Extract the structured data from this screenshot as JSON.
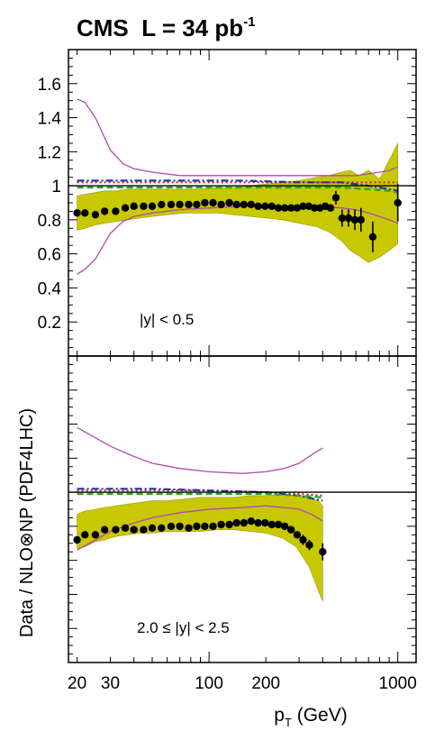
{
  "chart_data": [
    {
      "type": "scatter",
      "title": "CMS  L = 34 pb",
      "title_superscript": "-1",
      "annotation": "|y| < 0.5",
      "xlabel": "",
      "ylabel": "",
      "xscale": "log",
      "xlim": [
        18,
        1250
      ],
      "ylim": [
        0,
        1.8
      ],
      "yticks": [
        0.2,
        0.4,
        0.6,
        0.8,
        1,
        1.2,
        1.4,
        1.6
      ],
      "ytick_labels": [
        "0.2",
        "0.4",
        "0.6",
        "0.8",
        "1",
        "1.2",
        "1.4",
        "1.6"
      ],
      "reference_line": 1,
      "colors": {
        "band": "#c8c800",
        "bandEdge": "#9a9a00",
        "magenta": "#b04ab0",
        "red": "#cc2222",
        "blue": "#2233aa",
        "green": "#22aa22"
      },
      "band": {
        "x": [
          20,
          22,
          25,
          28,
          32,
          37,
          43,
          50,
          60,
          74,
          90,
          110,
          135,
          165,
          200,
          245,
          300,
          370,
          430,
          500,
          560,
          620,
          700,
          800,
          900,
          1000
        ],
        "upper": [
          0.94,
          0.95,
          0.96,
          0.97,
          0.97,
          0.98,
          0.98,
          0.98,
          0.98,
          0.98,
          0.98,
          0.99,
          0.99,
          1.0,
          1.01,
          1.02,
          1.03,
          1.05,
          1.06,
          1.08,
          1.09,
          1.06,
          1.09,
          1.04,
          1.15,
          1.25
        ],
        "lower": [
          0.74,
          0.75,
          0.77,
          0.78,
          0.79,
          0.8,
          0.81,
          0.82,
          0.83,
          0.84,
          0.84,
          0.84,
          0.83,
          0.82,
          0.81,
          0.8,
          0.78,
          0.76,
          0.73,
          0.68,
          0.62,
          0.59,
          0.55,
          0.58,
          0.62,
          0.66
        ]
      },
      "curves": [
        {
          "style": "solid",
          "color": "#b04ab0",
          "x": [
            20,
            22,
            25,
            30,
            35,
            40,
            50,
            70,
            100,
            150,
            200,
            300,
            400,
            500,
            600,
            700,
            800,
            900,
            1000
          ],
          "y": [
            1.51,
            1.49,
            1.4,
            1.21,
            1.13,
            1.1,
            1.08,
            1.06,
            1.06,
            1.06,
            1.06,
            1.06,
            1.06,
            1.06,
            1.06,
            1.07,
            1.08,
            1.09,
            1.11
          ]
        },
        {
          "style": "solid",
          "color": "#b04ab0",
          "x": [
            20,
            22,
            25,
            30,
            35,
            40,
            50,
            70,
            100,
            150,
            200,
            300,
            400,
            500,
            600,
            700,
            800,
            900,
            1000
          ],
          "y": [
            0.48,
            0.51,
            0.57,
            0.72,
            0.79,
            0.82,
            0.84,
            0.86,
            0.87,
            0.88,
            0.88,
            0.88,
            0.88,
            0.87,
            0.86,
            0.84,
            0.82,
            0.8,
            0.78
          ]
        },
        {
          "style": "dotted",
          "color": "#cc2222",
          "x": [
            20,
            40,
            80,
            150,
            300,
            500,
            700,
            900,
            1000
          ],
          "y": [
            1.02,
            1.02,
            1.02,
            1.02,
            1.02,
            1.02,
            1.02,
            1.02,
            1.02
          ]
        },
        {
          "style": "dashdot",
          "color": "#2233aa",
          "x": [
            20,
            40,
            80,
            150,
            300,
            500,
            700,
            900,
            1000
          ],
          "y": [
            1.03,
            1.03,
            1.03,
            1.03,
            1.02,
            1.02,
            1.0,
            0.98,
            0.97
          ]
        },
        {
          "style": "dashed",
          "color": "#22aa22",
          "x": [
            20,
            40,
            80,
            150,
            300,
            500,
            700,
            900,
            1000
          ],
          "y": [
            0.99,
            0.99,
            0.99,
            0.99,
            0.99,
            0.99,
            0.98,
            0.97,
            0.96
          ]
        }
      ],
      "points": {
        "x": [
          20,
          22,
          25,
          28,
          32,
          36,
          40,
          45,
          50,
          56,
          63,
          70,
          78,
          86,
          95,
          105,
          116,
          128,
          140,
          153,
          167,
          182,
          198,
          215,
          233,
          252,
          272,
          293,
          315,
          338,
          362,
          387,
          413,
          440,
          470,
          507,
          548,
          592,
          638,
          737,
          1000
        ],
        "y": [
          0.84,
          0.84,
          0.83,
          0.85,
          0.85,
          0.87,
          0.88,
          0.88,
          0.88,
          0.89,
          0.89,
          0.89,
          0.89,
          0.89,
          0.9,
          0.9,
          0.89,
          0.9,
          0.89,
          0.89,
          0.89,
          0.88,
          0.88,
          0.88,
          0.87,
          0.87,
          0.87,
          0.87,
          0.88,
          0.88,
          0.87,
          0.87,
          0.88,
          0.87,
          0.93,
          0.81,
          0.81,
          0.8,
          0.8,
          0.7,
          0.9
        ],
        "err": [
          0.01,
          0.01,
          0.01,
          0.01,
          0.01,
          0.01,
          0.01,
          0.01,
          0.01,
          0.01,
          0.01,
          0.01,
          0.01,
          0.01,
          0.01,
          0.01,
          0.01,
          0.01,
          0.01,
          0.01,
          0.01,
          0.01,
          0.01,
          0.01,
          0.01,
          0.01,
          0.01,
          0.01,
          0.01,
          0.01,
          0.01,
          0.01,
          0.01,
          0.02,
          0.04,
          0.05,
          0.05,
          0.06,
          0.07,
          0.09,
          0.11
        ]
      }
    },
    {
      "type": "scatter",
      "annotation": "2.0 ≤ |y| < 2.5",
      "xlabel": "p",
      "xlabel_subscript": "T",
      "xlabel_suffix": " (GeV)",
      "ylabel": "Data / NLO⊗NP (PDF4LHC)",
      "xscale": "log",
      "xlim": [
        18,
        1250
      ],
      "ylim": [
        0,
        1.8
      ],
      "xticks": [
        20,
        30,
        100,
        200,
        1000
      ],
      "xtick_labels": [
        "20",
        "30",
        "100",
        "200",
        "1000"
      ],
      "ytick_labels": [],
      "reference_line": 1,
      "band": {
        "x": [
          20,
          22,
          25,
          28,
          32,
          37,
          43,
          50,
          60,
          74,
          90,
          110,
          135,
          165,
          200,
          245,
          290,
          340,
          380,
          400
        ],
        "upper": [
          0.87,
          0.89,
          0.9,
          0.91,
          0.92,
          0.93,
          0.94,
          0.95,
          0.95,
          0.96,
          0.97,
          0.97,
          0.97,
          0.98,
          0.98,
          0.99,
          0.98,
          0.97,
          0.95,
          0.92
        ],
        "lower": [
          0.67,
          0.68,
          0.71,
          0.72,
          0.74,
          0.75,
          0.76,
          0.76,
          0.77,
          0.77,
          0.77,
          0.78,
          0.78,
          0.77,
          0.76,
          0.73,
          0.68,
          0.56,
          0.42,
          0.36
        ]
      },
      "curves": [
        {
          "style": "solid",
          "color": "#b04ab0",
          "x": [
            20,
            25,
            30,
            40,
            50,
            70,
            100,
            150,
            200,
            250,
            300,
            350,
            400
          ],
          "y": [
            1.38,
            1.32,
            1.27,
            1.21,
            1.17,
            1.14,
            1.12,
            1.11,
            1.12,
            1.14,
            1.17,
            1.22,
            1.26
          ]
        },
        {
          "style": "solid",
          "color": "#b04ab0",
          "x": [
            20,
            25,
            30,
            40,
            50,
            70,
            100,
            150,
            200,
            250,
            300,
            350,
            400
          ],
          "y": [
            0.66,
            0.72,
            0.77,
            0.82,
            0.85,
            0.88,
            0.9,
            0.91,
            0.92,
            0.91,
            0.9,
            0.87,
            0.83
          ]
        },
        {
          "style": "dotted",
          "color": "#cc2222",
          "x": [
            20,
            50,
            100,
            200,
            300,
            400
          ],
          "y": [
            1.01,
            1.01,
            1.01,
            1.0,
            0.99,
            0.98
          ]
        },
        {
          "style": "dashdot",
          "color": "#2233aa",
          "x": [
            20,
            50,
            100,
            200,
            300,
            400
          ],
          "y": [
            1.02,
            1.02,
            1.01,
            1.0,
            0.98,
            0.95
          ]
        },
        {
          "style": "dashed",
          "color": "#22aa22",
          "x": [
            20,
            50,
            100,
            200,
            300,
            400
          ],
          "y": [
            0.99,
            0.99,
            0.99,
            0.99,
            0.98,
            0.97
          ]
        }
      ],
      "points": {
        "x": [
          20,
          22,
          25,
          28,
          32,
          36,
          40,
          45,
          50,
          56,
          63,
          70,
          78,
          86,
          95,
          105,
          116,
          128,
          140,
          153,
          167,
          182,
          198,
          215,
          233,
          252,
          272,
          293,
          315,
          340,
          400
        ],
        "y": [
          0.72,
          0.75,
          0.75,
          0.78,
          0.78,
          0.79,
          0.78,
          0.78,
          0.79,
          0.79,
          0.8,
          0.8,
          0.79,
          0.8,
          0.8,
          0.8,
          0.81,
          0.81,
          0.82,
          0.82,
          0.83,
          0.82,
          0.82,
          0.81,
          0.81,
          0.8,
          0.78,
          0.75,
          0.72,
          0.69,
          0.65
        ],
        "err": [
          0.01,
          0.01,
          0.01,
          0.01,
          0.01,
          0.01,
          0.01,
          0.01,
          0.01,
          0.01,
          0.01,
          0.01,
          0.01,
          0.01,
          0.01,
          0.01,
          0.01,
          0.01,
          0.01,
          0.01,
          0.01,
          0.01,
          0.01,
          0.01,
          0.01,
          0.02,
          0.02,
          0.02,
          0.03,
          0.03,
          0.05
        ]
      }
    }
  ]
}
